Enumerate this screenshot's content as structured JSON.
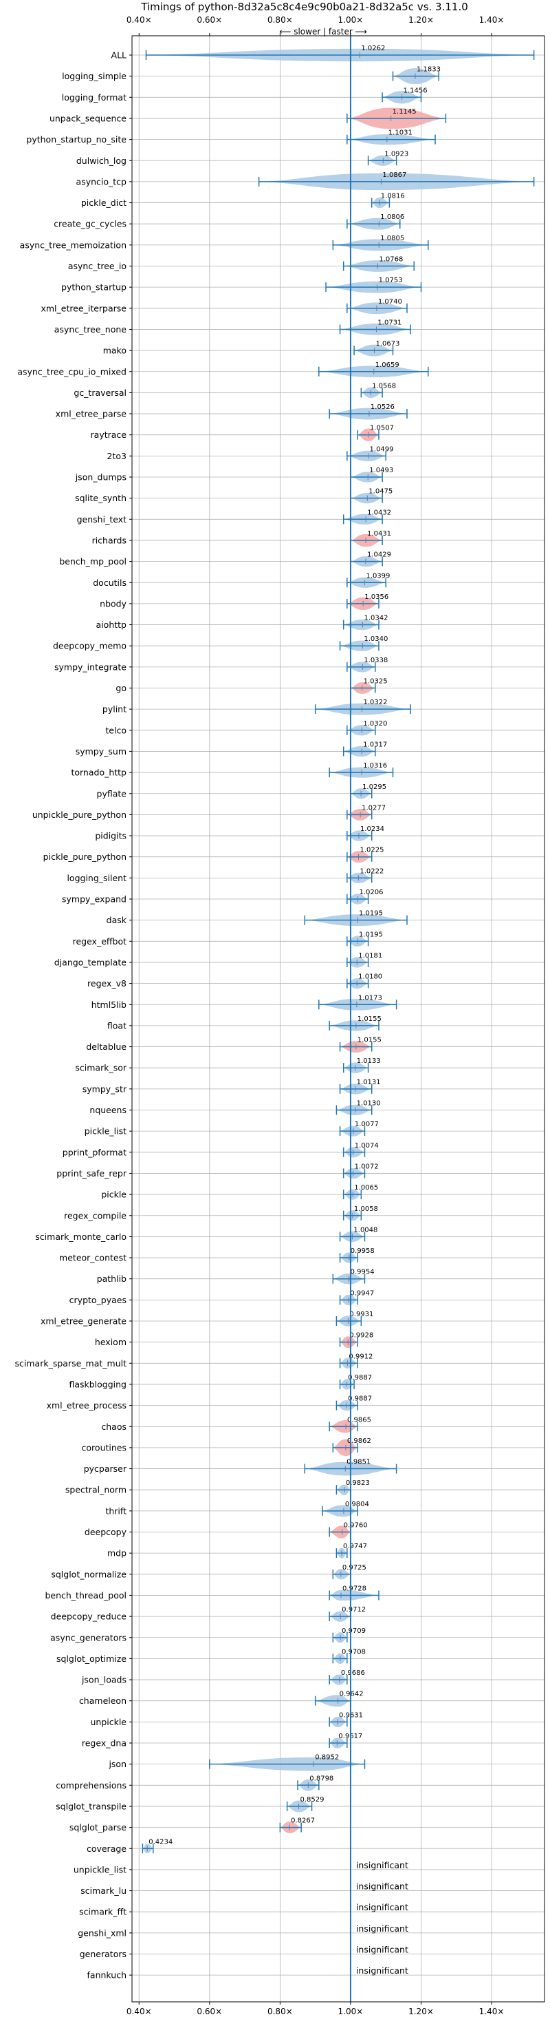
{
  "chart_data": {
    "type": "violin",
    "title": "Timings of python-8d32a5c8c4e9c90b0a21-8d32a5c vs. 3.11.0",
    "annotation": "⟵ slower | faster ⟶",
    "xlim": [
      0.38,
      1.55
    ],
    "xticks": [
      0.4,
      0.6,
      0.8,
      1.0,
      1.2,
      1.4
    ],
    "xtick_labels": [
      "0.40×",
      "0.60×",
      "0.80×",
      "1.00×",
      "1.20×",
      "1.40×"
    ],
    "reference_line": 1.0,
    "grid": true,
    "colors": {
      "default": "#1f77b4",
      "highlight": "#f4a6a6",
      "violin": "#a9c8e4"
    },
    "benchmarks": [
      {
        "name": "ALL",
        "value": 1.0262,
        "label": "1.0262",
        "min": 0.42,
        "max": 1.52,
        "width": 0.6,
        "highlight": false
      },
      {
        "name": "logging_simple",
        "value": 1.1833,
        "label": "1.1833",
        "min": 1.12,
        "max": 1.25,
        "width": 0.75,
        "highlight": false
      },
      {
        "name": "logging_format",
        "value": 1.1456,
        "label": "1.1456",
        "min": 1.09,
        "max": 1.2,
        "width": 0.6,
        "highlight": false
      },
      {
        "name": "unpack_sequence",
        "value": 1.1145,
        "label": "1.1145",
        "min": 0.99,
        "max": 1.27,
        "width": 1.0,
        "highlight": true
      },
      {
        "name": "python_startup_no_site",
        "value": 1.1031,
        "label": "1.1031",
        "min": 0.99,
        "max": 1.24,
        "width": 0.5,
        "highlight": false
      },
      {
        "name": "dulwich_log",
        "value": 1.0923,
        "label": "1.0923",
        "min": 1.05,
        "max": 1.13,
        "width": 0.5,
        "highlight": false
      },
      {
        "name": "asyncio_tcp",
        "value": 1.0867,
        "label": "1.0867",
        "min": 0.74,
        "max": 1.52,
        "width": 0.8,
        "highlight": false
      },
      {
        "name": "pickle_dict",
        "value": 1.0816,
        "label": "1.0816",
        "min": 1.06,
        "max": 1.11,
        "width": 0.5,
        "highlight": false
      },
      {
        "name": "create_gc_cycles",
        "value": 1.0806,
        "label": "1.0806",
        "min": 0.99,
        "max": 1.14,
        "width": 0.55,
        "highlight": false
      },
      {
        "name": "async_tree_memoization",
        "value": 1.0805,
        "label": "1.0805",
        "min": 0.95,
        "max": 1.22,
        "width": 0.55,
        "highlight": false
      },
      {
        "name": "async_tree_io",
        "value": 1.0768,
        "label": "1.0768",
        "min": 0.98,
        "max": 1.18,
        "width": 0.55,
        "highlight": false
      },
      {
        "name": "python_startup",
        "value": 1.0753,
        "label": "1.0753",
        "min": 0.93,
        "max": 1.2,
        "width": 0.55,
        "highlight": false
      },
      {
        "name": "xml_etree_iterparse",
        "value": 1.074,
        "label": "1.0740",
        "min": 0.99,
        "max": 1.16,
        "width": 0.55,
        "highlight": false
      },
      {
        "name": "async_tree_none",
        "value": 1.0731,
        "label": "1.0731",
        "min": 0.97,
        "max": 1.17,
        "width": 0.55,
        "highlight": false
      },
      {
        "name": "mako",
        "value": 1.0673,
        "label": "1.0673",
        "min": 1.01,
        "max": 1.12,
        "width": 0.55,
        "highlight": false
      },
      {
        "name": "async_tree_cpu_io_mixed",
        "value": 1.0659,
        "label": "1.0659",
        "min": 0.91,
        "max": 1.22,
        "width": 0.55,
        "highlight": false
      },
      {
        "name": "gc_traversal",
        "value": 1.0568,
        "label": "1.0568",
        "min": 1.03,
        "max": 1.09,
        "width": 0.5,
        "highlight": false
      },
      {
        "name": "xml_etree_parse",
        "value": 1.0526,
        "label": "1.0526",
        "min": 0.94,
        "max": 1.16,
        "width": 0.55,
        "highlight": false
      },
      {
        "name": "raytrace",
        "value": 1.0507,
        "label": "1.0507",
        "min": 1.02,
        "max": 1.08,
        "width": 0.6,
        "highlight": true
      },
      {
        "name": "2to3",
        "value": 1.0499,
        "label": "1.0499",
        "min": 0.99,
        "max": 1.1,
        "width": 0.5,
        "highlight": false
      },
      {
        "name": "json_dumps",
        "value": 1.0493,
        "label": "1.0493",
        "min": 1.0,
        "max": 1.09,
        "width": 0.5,
        "highlight": false
      },
      {
        "name": "sqlite_synth",
        "value": 1.0475,
        "label": "1.0475",
        "min": 1.0,
        "max": 1.09,
        "width": 0.5,
        "highlight": false
      },
      {
        "name": "genshi_text",
        "value": 1.0432,
        "label": "1.0432",
        "min": 0.98,
        "max": 1.09,
        "width": 0.5,
        "highlight": false
      },
      {
        "name": "richards",
        "value": 1.0431,
        "label": "1.0431",
        "min": 1.0,
        "max": 1.09,
        "width": 0.6,
        "highlight": true
      },
      {
        "name": "bench_mp_pool",
        "value": 1.0429,
        "label": "1.0429",
        "min": 1.0,
        "max": 1.09,
        "width": 0.5,
        "highlight": false
      },
      {
        "name": "docutils",
        "value": 1.0399,
        "label": "1.0399",
        "min": 0.99,
        "max": 1.1,
        "width": 0.5,
        "highlight": false
      },
      {
        "name": "nbody",
        "value": 1.0356,
        "label": "1.0356",
        "min": 0.99,
        "max": 1.08,
        "width": 0.6,
        "highlight": true
      },
      {
        "name": "aiohttp",
        "value": 1.0342,
        "label": "1.0342",
        "min": 0.98,
        "max": 1.08,
        "width": 0.5,
        "highlight": false
      },
      {
        "name": "deepcopy_memo",
        "value": 1.034,
        "label": "1.0340",
        "min": 0.97,
        "max": 1.08,
        "width": 0.5,
        "highlight": false
      },
      {
        "name": "sympy_integrate",
        "value": 1.0338,
        "label": "1.0338",
        "min": 0.99,
        "max": 1.07,
        "width": 0.5,
        "highlight": false
      },
      {
        "name": "go",
        "value": 1.0325,
        "label": "1.0325",
        "min": 1.0,
        "max": 1.07,
        "width": 0.55,
        "highlight": true
      },
      {
        "name": "pylint",
        "value": 1.0322,
        "label": "1.0322",
        "min": 0.9,
        "max": 1.17,
        "width": 0.55,
        "highlight": false
      },
      {
        "name": "telco",
        "value": 1.032,
        "label": "1.0320",
        "min": 0.99,
        "max": 1.07,
        "width": 0.5,
        "highlight": false
      },
      {
        "name": "sympy_sum",
        "value": 1.0317,
        "label": "1.0317",
        "min": 0.98,
        "max": 1.07,
        "width": 0.5,
        "highlight": false
      },
      {
        "name": "tornado_http",
        "value": 1.0316,
        "label": "1.0316",
        "min": 0.94,
        "max": 1.12,
        "width": 0.5,
        "highlight": false
      },
      {
        "name": "pyflate",
        "value": 1.0295,
        "label": "1.0295",
        "min": 1.0,
        "max": 1.06,
        "width": 0.5,
        "highlight": false
      },
      {
        "name": "unpickle_pure_python",
        "value": 1.0277,
        "label": "1.0277",
        "min": 0.99,
        "max": 1.06,
        "width": 0.55,
        "highlight": true
      },
      {
        "name": "pidigits",
        "value": 1.0234,
        "label": "1.0234",
        "min": 0.99,
        "max": 1.06,
        "width": 0.5,
        "highlight": false
      },
      {
        "name": "pickle_pure_python",
        "value": 1.0225,
        "label": "1.0225",
        "min": 0.99,
        "max": 1.06,
        "width": 0.55,
        "highlight": true
      },
      {
        "name": "logging_silent",
        "value": 1.0222,
        "label": "1.0222",
        "min": 0.99,
        "max": 1.06,
        "width": 0.5,
        "highlight": false
      },
      {
        "name": "sympy_expand",
        "value": 1.0206,
        "label": "1.0206",
        "min": 0.99,
        "max": 1.05,
        "width": 0.5,
        "highlight": false
      },
      {
        "name": "dask",
        "value": 1.0195,
        "label": "1.0195",
        "min": 0.87,
        "max": 1.16,
        "width": 0.55,
        "highlight": false
      },
      {
        "name": "regex_effbot",
        "value": 1.0195,
        "label": "1.0195",
        "min": 0.99,
        "max": 1.05,
        "width": 0.5,
        "highlight": false
      },
      {
        "name": "django_template",
        "value": 1.0181,
        "label": "1.0181",
        "min": 0.99,
        "max": 1.05,
        "width": 0.5,
        "highlight": false
      },
      {
        "name": "regex_v8",
        "value": 1.018,
        "label": "1.0180",
        "min": 0.99,
        "max": 1.05,
        "width": 0.5,
        "highlight": false
      },
      {
        "name": "html5lib",
        "value": 1.0173,
        "label": "1.0173",
        "min": 0.91,
        "max": 1.13,
        "width": 0.55,
        "highlight": false
      },
      {
        "name": "float",
        "value": 1.0155,
        "label": "1.0155",
        "min": 0.94,
        "max": 1.08,
        "width": 0.5,
        "highlight": false
      },
      {
        "name": "deltablue",
        "value": 1.0155,
        "label": "1.0155",
        "min": 0.97,
        "max": 1.06,
        "width": 0.55,
        "highlight": true
      },
      {
        "name": "scimark_sor",
        "value": 1.0133,
        "label": "1.0133",
        "min": 0.98,
        "max": 1.05,
        "width": 0.5,
        "highlight": false
      },
      {
        "name": "sympy_str",
        "value": 1.0131,
        "label": "1.0131",
        "min": 0.97,
        "max": 1.06,
        "width": 0.5,
        "highlight": false
      },
      {
        "name": "nqueens",
        "value": 1.013,
        "label": "1.0130",
        "min": 0.96,
        "max": 1.06,
        "width": 0.5,
        "highlight": false
      },
      {
        "name": "pickle_list",
        "value": 1.0077,
        "label": "1.0077",
        "min": 0.97,
        "max": 1.04,
        "width": 0.5,
        "highlight": false
      },
      {
        "name": "pprint_pformat",
        "value": 1.0074,
        "label": "1.0074",
        "min": 0.98,
        "max": 1.04,
        "width": 0.5,
        "highlight": false
      },
      {
        "name": "pprint_safe_repr",
        "value": 1.0072,
        "label": "1.0072",
        "min": 0.98,
        "max": 1.04,
        "width": 0.5,
        "highlight": false
      },
      {
        "name": "pickle",
        "value": 1.0065,
        "label": "1.0065",
        "min": 0.98,
        "max": 1.03,
        "width": 0.5,
        "highlight": false
      },
      {
        "name": "regex_compile",
        "value": 1.0058,
        "label": "1.0058",
        "min": 0.98,
        "max": 1.03,
        "width": 0.5,
        "highlight": false
      },
      {
        "name": "scimark_monte_carlo",
        "value": 1.0048,
        "label": "1.0048",
        "min": 0.97,
        "max": 1.04,
        "width": 0.5,
        "highlight": false
      },
      {
        "name": "meteor_contest",
        "value": 0.9958,
        "label": "0.9958",
        "min": 0.97,
        "max": 1.02,
        "width": 0.5,
        "highlight": false
      },
      {
        "name": "pathlib",
        "value": 0.9954,
        "label": "0.9954",
        "min": 0.95,
        "max": 1.04,
        "width": 0.5,
        "highlight": false
      },
      {
        "name": "crypto_pyaes",
        "value": 0.9947,
        "label": "0.9947",
        "min": 0.97,
        "max": 1.02,
        "width": 0.5,
        "highlight": false
      },
      {
        "name": "xml_etree_generate",
        "value": 0.9931,
        "label": "0.9931",
        "min": 0.96,
        "max": 1.03,
        "width": 0.5,
        "highlight": false
      },
      {
        "name": "hexiom",
        "value": 0.9928,
        "label": "0.9928",
        "min": 0.97,
        "max": 1.02,
        "width": 0.55,
        "highlight": true
      },
      {
        "name": "scimark_sparse_mat_mult",
        "value": 0.9912,
        "label": "0.9912",
        "min": 0.97,
        "max": 1.02,
        "width": 0.5,
        "highlight": false
      },
      {
        "name": "flaskblogging",
        "value": 0.9887,
        "label": "0.9887",
        "min": 0.97,
        "max": 1.01,
        "width": 0.5,
        "highlight": false
      },
      {
        "name": "xml_etree_process",
        "value": 0.9887,
        "label": "0.9887",
        "min": 0.96,
        "max": 1.02,
        "width": 0.5,
        "highlight": false
      },
      {
        "name": "chaos",
        "value": 0.9865,
        "label": "0.9865",
        "min": 0.94,
        "max": 1.02,
        "width": 0.6,
        "highlight": true
      },
      {
        "name": "coroutines",
        "value": 0.9862,
        "label": "0.9862",
        "min": 0.95,
        "max": 1.02,
        "width": 0.8,
        "highlight": true
      },
      {
        "name": "pycparser",
        "value": 0.9851,
        "label": "0.9851",
        "min": 0.87,
        "max": 1.13,
        "width": 0.65,
        "highlight": false
      },
      {
        "name": "spectral_norm",
        "value": 0.9823,
        "label": "0.9823",
        "min": 0.96,
        "max": 1.0,
        "width": 0.5,
        "highlight": false
      },
      {
        "name": "thrift",
        "value": 0.9804,
        "label": "0.9804",
        "min": 0.92,
        "max": 1.02,
        "width": 0.55,
        "highlight": false
      },
      {
        "name": "deepcopy",
        "value": 0.976,
        "label": "0.9760",
        "min": 0.94,
        "max": 1.0,
        "width": 0.6,
        "highlight": true
      },
      {
        "name": "mdp",
        "value": 0.9747,
        "label": "0.9747",
        "min": 0.96,
        "max": 0.99,
        "width": 0.5,
        "highlight": false
      },
      {
        "name": "sqlglot_normalize",
        "value": 0.9725,
        "label": "0.9725",
        "min": 0.95,
        "max": 1.0,
        "width": 0.5,
        "highlight": false
      },
      {
        "name": "bench_thread_pool",
        "value": 0.9728,
        "label": "0.9728",
        "min": 0.94,
        "max": 1.08,
        "width": 0.5,
        "highlight": false
      },
      {
        "name": "deepcopy_reduce",
        "value": 0.9712,
        "label": "0.9712",
        "min": 0.94,
        "max": 1.0,
        "width": 0.5,
        "highlight": false
      },
      {
        "name": "async_generators",
        "value": 0.9709,
        "label": "0.9709",
        "min": 0.95,
        "max": 0.99,
        "width": 0.5,
        "highlight": false
      },
      {
        "name": "sqlglot_optimize",
        "value": 0.9708,
        "label": "0.9708",
        "min": 0.95,
        "max": 0.99,
        "width": 0.5,
        "highlight": false
      },
      {
        "name": "json_loads",
        "value": 0.9686,
        "label": "0.9686",
        "min": 0.94,
        "max": 0.99,
        "width": 0.5,
        "highlight": false
      },
      {
        "name": "chameleon",
        "value": 0.9642,
        "label": "0.9642",
        "min": 0.9,
        "max": 1.0,
        "width": 0.55,
        "highlight": false
      },
      {
        "name": "unpickle",
        "value": 0.9631,
        "label": "0.9631",
        "min": 0.94,
        "max": 0.99,
        "width": 0.5,
        "highlight": false
      },
      {
        "name": "regex_dna",
        "value": 0.9617,
        "label": "0.9617",
        "min": 0.94,
        "max": 0.99,
        "width": 0.5,
        "highlight": false
      },
      {
        "name": "json",
        "value": 0.8952,
        "label": "0.8952",
        "min": 0.6,
        "max": 1.04,
        "width": 0.65,
        "highlight": false
      },
      {
        "name": "comprehensions",
        "value": 0.8798,
        "label": "0.8798",
        "min": 0.85,
        "max": 0.91,
        "width": 0.55,
        "highlight": false
      },
      {
        "name": "sqlglot_transpile",
        "value": 0.8529,
        "label": "0.8529",
        "min": 0.82,
        "max": 0.89,
        "width": 0.55,
        "highlight": false
      },
      {
        "name": "sqlglot_parse",
        "value": 0.8267,
        "label": "0.8267",
        "min": 0.8,
        "max": 0.86,
        "width": 0.55,
        "highlight": true
      },
      {
        "name": "coverage",
        "value": 0.4234,
        "label": "0.4234",
        "min": 0.41,
        "max": 0.44,
        "width": 0.45,
        "highlight": false
      },
      {
        "name": "unpickle_list",
        "value": null,
        "label": "insignificant"
      },
      {
        "name": "scimark_lu",
        "value": null,
        "label": "insignificant"
      },
      {
        "name": "scimark_fft",
        "value": null,
        "label": "insignificant"
      },
      {
        "name": "genshi_xml",
        "value": null,
        "label": "insignificant"
      },
      {
        "name": "generators",
        "value": null,
        "label": "insignificant"
      },
      {
        "name": "fannkuch",
        "value": null,
        "label": "insignificant"
      }
    ]
  }
}
